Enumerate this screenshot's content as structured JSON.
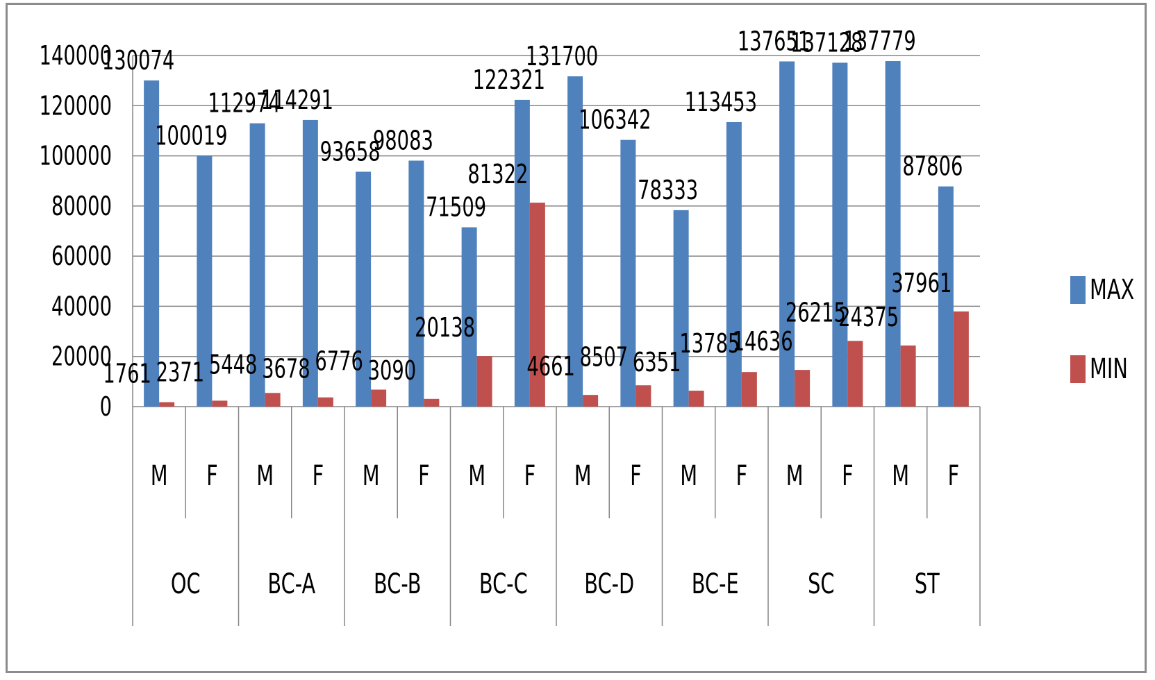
{
  "chart_data": {
    "type": "bar",
    "title": "",
    "xlabel": "",
    "ylabel": "",
    "ylim": [
      0,
      140000
    ],
    "yticks": [
      0,
      20000,
      40000,
      60000,
      80000,
      100000,
      120000,
      140000
    ],
    "grid": true,
    "legend_position": "right",
    "groups": [
      "OC",
      "BC-A",
      "BC-B",
      "BC-C",
      "BC-D",
      "BC-E",
      "SC",
      "ST"
    ],
    "categories": [
      "M",
      "F",
      "M",
      "F",
      "M",
      "F",
      "M",
      "F",
      "M",
      "F",
      "M",
      "F",
      "M",
      "F",
      "M",
      "F"
    ],
    "series": [
      {
        "name": "MAX",
        "color": "#4f81bd",
        "values": [
          130074,
          100019,
          112974,
          114291,
          93658,
          98083,
          71509,
          122321,
          131700,
          106342,
          78333,
          113453,
          137651,
          137128,
          137779,
          87806
        ]
      },
      {
        "name": "MIN",
        "color": "#c0504d",
        "values": [
          1761,
          2371,
          5448,
          3678,
          6776,
          3090,
          20138,
          81322,
          4661,
          8507,
          6351,
          13785,
          14636,
          26215,
          24375,
          37961
        ]
      }
    ]
  }
}
